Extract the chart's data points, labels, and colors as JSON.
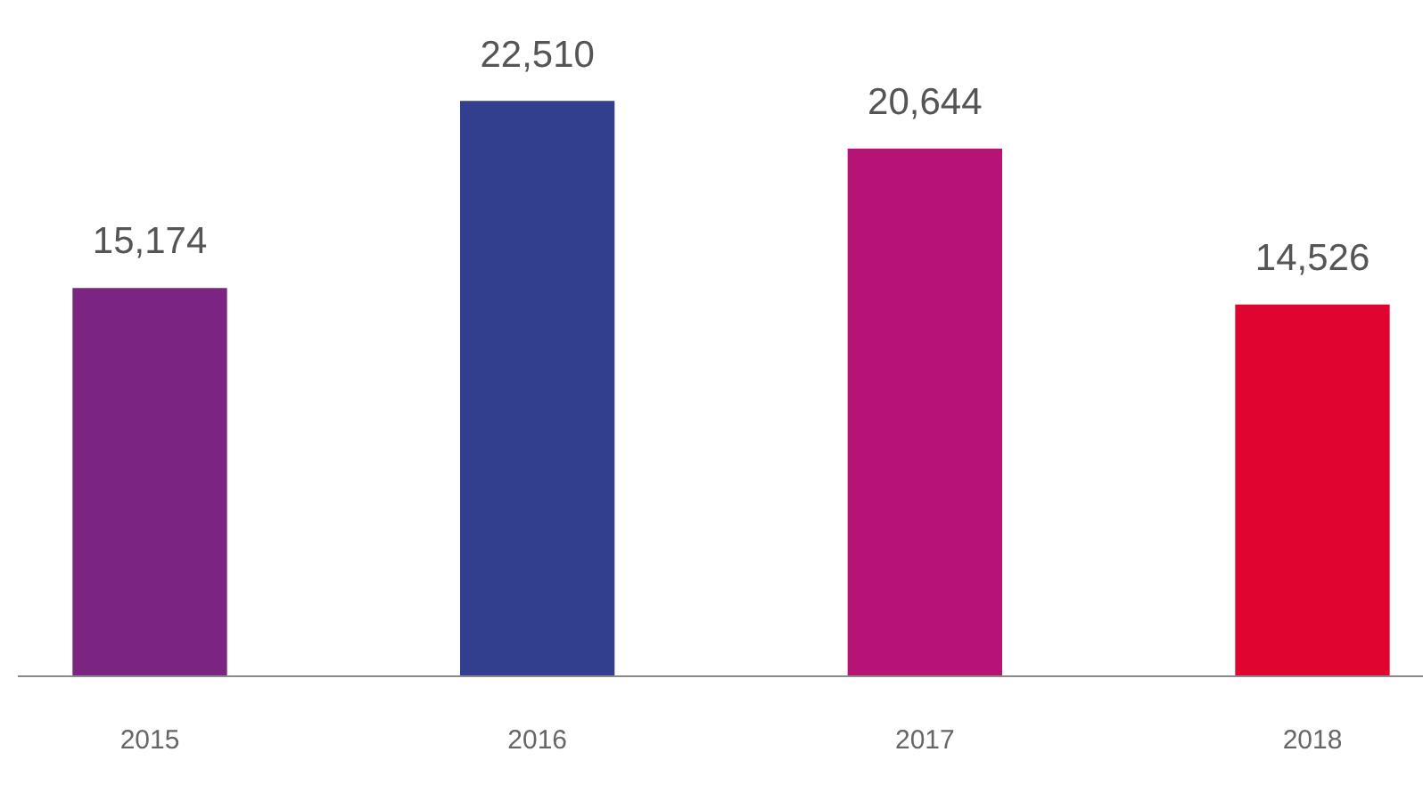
{
  "chart_data": {
    "type": "bar",
    "categories": [
      "2015",
      "2016",
      "2017",
      "2018"
    ],
    "values": [
      15174,
      22510,
      20644,
      14526
    ],
    "value_labels": [
      "15,174",
      "22,510",
      "20,644",
      "14,526"
    ],
    "colors": [
      "#7b2482",
      "#323e8e",
      "#b71376",
      "#df0530"
    ]
  }
}
